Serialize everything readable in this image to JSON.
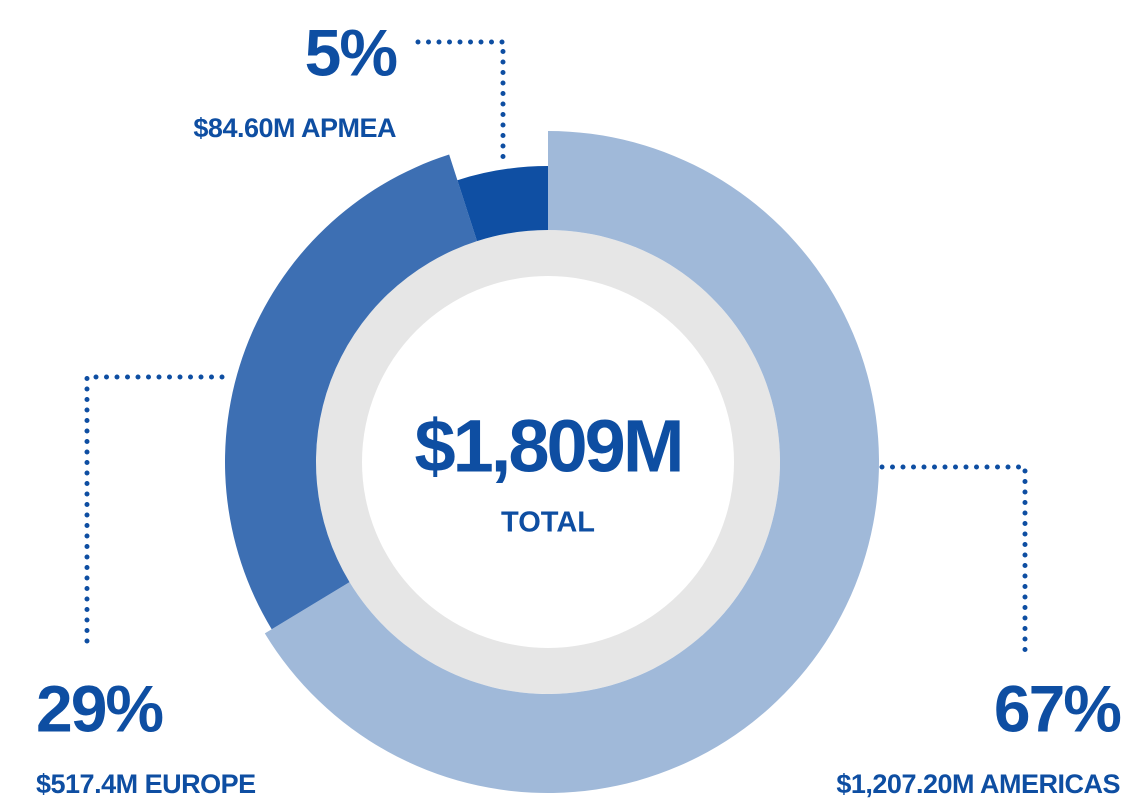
{
  "chart_data": {
    "type": "pie",
    "donut": true,
    "categories": [
      "$1,207.20M AMERICAS",
      "$517.4M EUROPE",
      "$84.60M APMEA"
    ],
    "values": [
      67,
      29,
      5
    ],
    "value_labels": [
      "67%",
      "29%",
      "5%"
    ],
    "colors": [
      "#a0b9d9",
      "#3d6fb3",
      "#0f4fa3"
    ],
    "annotations": [
      "$1,809M",
      "TOTAL"
    ]
  }
}
